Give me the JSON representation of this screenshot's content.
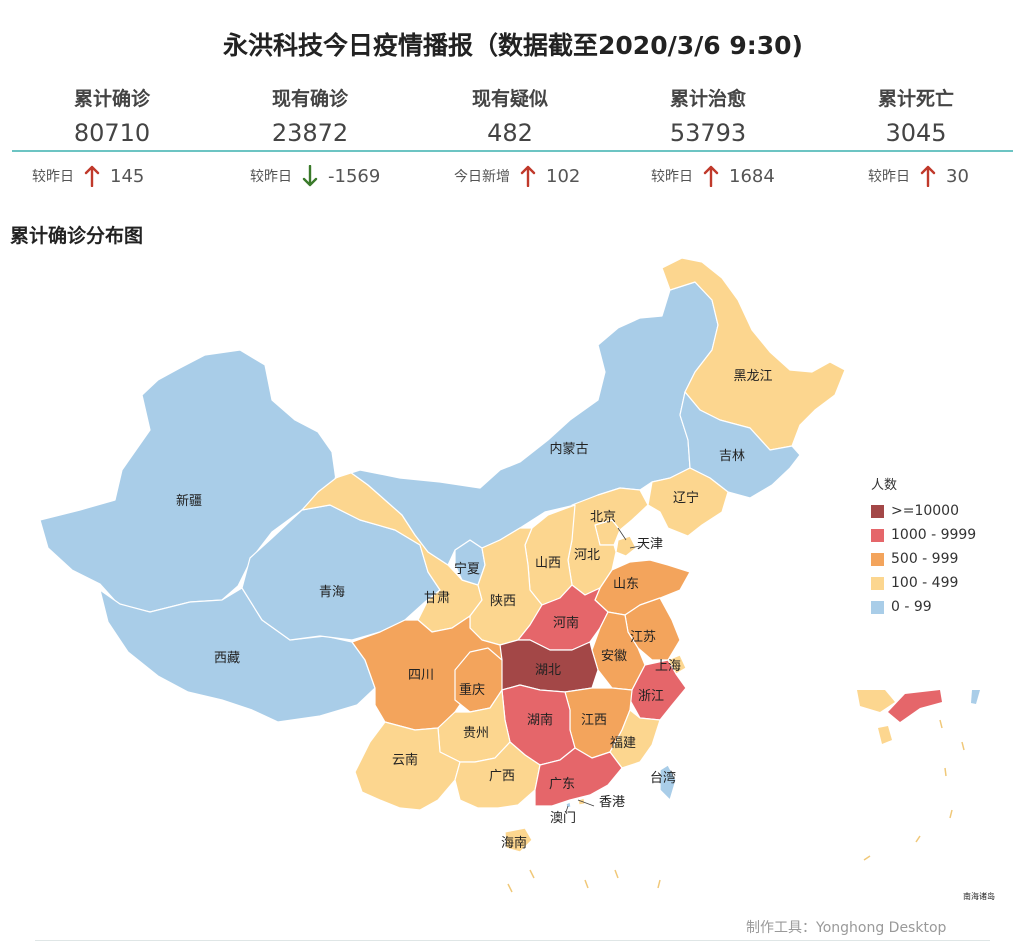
{
  "title": "永洪科技今日疫情播报（数据截至2020/3/6 9:30)",
  "stats": [
    {
      "label": "累计确诊",
      "value": "80710",
      "delta_label": "较昨日",
      "delta": "145",
      "direction": "up"
    },
    {
      "label": "现有确诊",
      "value": "23872",
      "delta_label": "较昨日",
      "delta": "-1569",
      "direction": "down"
    },
    {
      "label": "现有疑似",
      "value": "482",
      "delta_label": "今日新增",
      "delta": "102",
      "direction": "up"
    },
    {
      "label": "累计治愈",
      "value": "53793",
      "delta_label": "较昨日",
      "delta": "1684",
      "direction": "up"
    },
    {
      "label": "累计死亡",
      "value": "3045",
      "delta_label": "较昨日",
      "delta": "30",
      "direction": "up"
    }
  ],
  "colors": {
    "accent_line": "#6cc4c3",
    "up_arrow": "#c0392b",
    "down_arrow": "#3a7a2a",
    "ocean": "#ffffff",
    "border": "#ffffff",
    "dashes": "#f0c878"
  },
  "map_section_title": "累计确诊分布图",
  "chart_data": {
    "type": "choropleth",
    "legend_title": "人数",
    "legend_placement": "right",
    "bins": [
      {
        "label": ">=10000",
        "color": "#a34747"
      },
      {
        "label": "1000 - 9999",
        "color": "#e5666a"
      },
      {
        "label": "500 - 999",
        "color": "#f3a45c"
      },
      {
        "label": "100 - 499",
        "color": "#fcd68f"
      },
      {
        "label": "0 - 99",
        "color": "#a9cde8"
      }
    ],
    "regions": [
      {
        "name": "新疆",
        "bin": 4
      },
      {
        "name": "西藏",
        "bin": 4
      },
      {
        "name": "青海",
        "bin": 4
      },
      {
        "name": "内蒙古",
        "bin": 4
      },
      {
        "name": "吉林",
        "bin": 4
      },
      {
        "name": "宁夏",
        "bin": 4
      },
      {
        "name": "台湾",
        "bin": 4
      },
      {
        "name": "澳门",
        "bin": 4
      },
      {
        "name": "天津",
        "bin": 3
      },
      {
        "name": "黑龙江",
        "bin": 3
      },
      {
        "name": "辽宁",
        "bin": 3
      },
      {
        "name": "甘肃",
        "bin": 3
      },
      {
        "name": "陕西",
        "bin": 3
      },
      {
        "name": "山西",
        "bin": 3
      },
      {
        "name": "河北",
        "bin": 3
      },
      {
        "name": "北京",
        "bin": 3
      },
      {
        "name": "云南",
        "bin": 3
      },
      {
        "name": "贵州",
        "bin": 3
      },
      {
        "name": "广西",
        "bin": 3
      },
      {
        "name": "海南",
        "bin": 3
      },
      {
        "name": "福建",
        "bin": 3
      },
      {
        "name": "上海",
        "bin": 3
      },
      {
        "name": "香港",
        "bin": 3
      },
      {
        "name": "重庆",
        "bin": 2
      },
      {
        "name": "四川",
        "bin": 2
      },
      {
        "name": "山东",
        "bin": 2
      },
      {
        "name": "江苏",
        "bin": 2
      },
      {
        "name": "安徽",
        "bin": 2
      },
      {
        "name": "江西",
        "bin": 2
      },
      {
        "name": "河南",
        "bin": 1
      },
      {
        "name": "湖南",
        "bin": 1
      },
      {
        "name": "浙江",
        "bin": 1
      },
      {
        "name": "广东",
        "bin": 1
      },
      {
        "name": "湖北",
        "bin": 0
      }
    ],
    "inset_label": "南海诸岛"
  },
  "footer": "制作工具：Yonghong Desktop"
}
